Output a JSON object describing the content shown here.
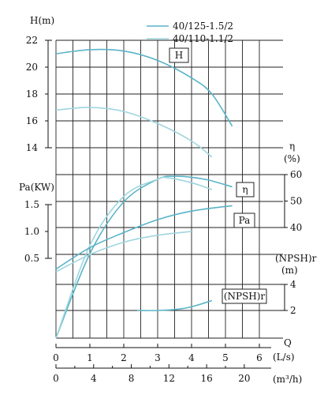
{
  "chart_data": {
    "type": "line",
    "title": "",
    "legend": {
      "placement": "top-right",
      "entries": [
        {
          "label": "40/125-1.5/2",
          "color": "#5ab4c8"
        },
        {
          "label": "40/110-1.1/2",
          "color": "#9ed6de"
        }
      ]
    },
    "grid": true,
    "x_axis": {
      "label": "Q",
      "unit": "(L/s)",
      "ticks": [
        "0",
        "1",
        "2",
        "3",
        "4",
        "5",
        "6"
      ],
      "range": [
        0,
        6.3
      ]
    },
    "x_axis_secondary": {
      "unit": "(m³/h)",
      "ticks": [
        "0",
        "4",
        "8",
        "12",
        "16",
        "20"
      ]
    },
    "axes": {
      "H": {
        "label": "H(m)",
        "ticks": [
          "14",
          "16",
          "18",
          "20",
          "22"
        ],
        "range": [
          14,
          22.4
        ]
      },
      "eta": {
        "label": "η",
        "unit": "(%)",
        "ticks": [
          "40",
          "50",
          "60"
        ],
        "range": [
          40,
          60
        ]
      },
      "Pa": {
        "label": "Pa(KW)",
        "ticks": [
          "0.5",
          "1.0",
          "1.5"
        ],
        "range": [
          0.5,
          1.5
        ]
      },
      "NPSH": {
        "label": "(NPSH)r",
        "unit": "(m)",
        "ticks": [
          "2",
          "4"
        ],
        "range": [
          2,
          4
        ]
      }
    },
    "curve_labels": {
      "H": "H",
      "eta": "η",
      "Pa": "Pa",
      "NPSH": "(NPSH)r"
    },
    "series": [
      {
        "name": "40/125-1.5/2",
        "curve": "H",
        "x": [
          0,
          1,
          2,
          3,
          4,
          4.6,
          5.2
        ],
        "y": [
          21.0,
          21.3,
          21.2,
          20.5,
          19.2,
          18.0,
          15.6
        ]
      },
      {
        "name": "40/110-1.1/2",
        "curve": "H",
        "x": [
          0,
          1,
          2,
          3,
          4,
          4.6
        ],
        "y": [
          16.8,
          17.0,
          16.7,
          15.8,
          14.5,
          13.3
        ]
      },
      {
        "name": "40/125-1.5/2",
        "curve": "eta",
        "x": [
          0,
          1,
          2,
          3,
          3.5,
          4,
          4.5,
          5.2
        ],
        "y": [
          0,
          31,
          50,
          58.3,
          59.4,
          59.0,
          58.0,
          55.5
        ]
      },
      {
        "name": "40/110-1.1/2",
        "curve": "eta",
        "x": [
          0,
          1,
          2,
          3,
          3.3,
          4,
          4.6
        ],
        "y": [
          0,
          34,
          52,
          58.3,
          58.8,
          57.0,
          54.5
        ]
      },
      {
        "name": "40/125-1.5/2",
        "curve": "Pa",
        "x": [
          0,
          1,
          2,
          3,
          4,
          5.2
        ],
        "y": [
          0.3,
          0.7,
          0.98,
          1.22,
          1.38,
          1.48
        ]
      },
      {
        "name": "40/110-1.1/2",
        "curve": "Pa",
        "x": [
          0,
          1,
          2,
          3,
          4
        ],
        "y": [
          0.25,
          0.57,
          0.8,
          0.93,
          1.0
        ]
      },
      {
        "name": "40/125-1.5/2",
        "curve": "NPSH",
        "x": [
          2.4,
          3.0,
          3.6,
          4.0,
          4.6
        ],
        "y": [
          2.0,
          2.0,
          2.1,
          2.28,
          2.76
        ]
      }
    ]
  }
}
